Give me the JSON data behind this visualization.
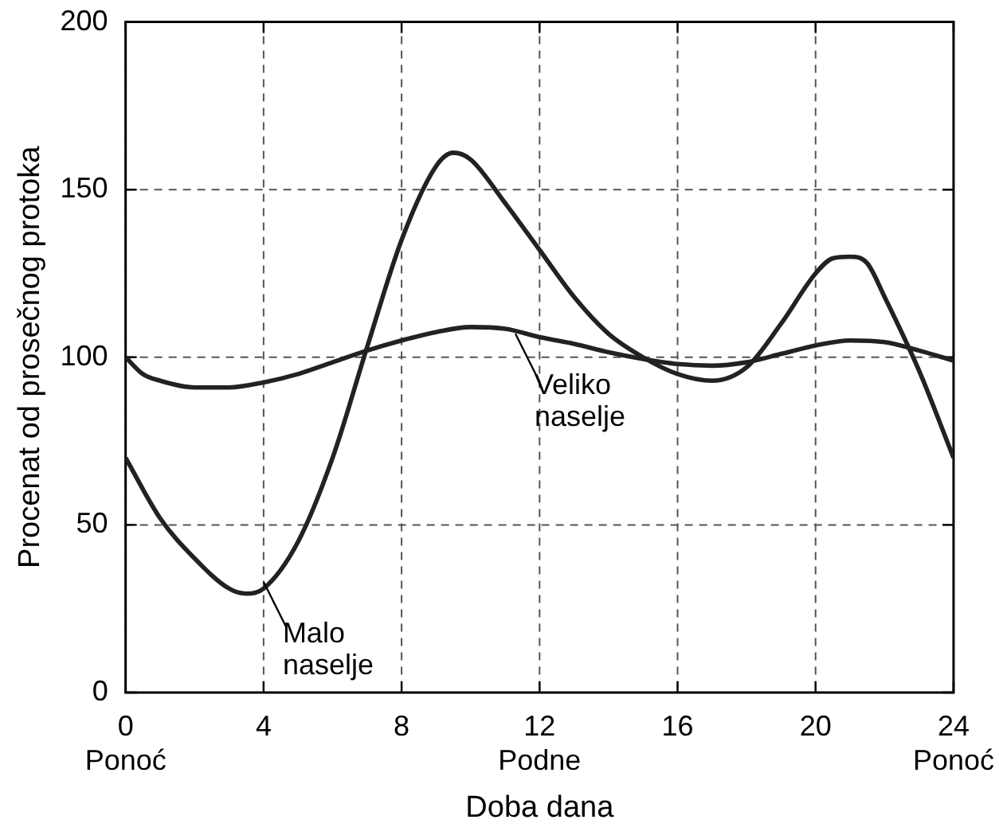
{
  "chart_data": {
    "type": "line",
    "xlabel": "Doba dana",
    "ylabel": "Procenat od prosečnog protoka",
    "xlim": [
      0,
      24
    ],
    "xticks": [
      {
        "value": 0,
        "label": "0\nPonoć"
      },
      4,
      8,
      {
        "value": 12,
        "label": "12\nPodne"
      },
      16,
      20,
      {
        "value": 24,
        "label": "24\nPonoć"
      }
    ],
    "ylim": [
      0,
      200
    ],
    "yticks": [
      0,
      50,
      100,
      150,
      200
    ],
    "grid": true,
    "legend": false,
    "marker": "none",
    "line_style": "solid",
    "series": [
      {
        "color": "#222222",
        "x": [
          0,
          0.5,
          1,
          2,
          3,
          4,
          5,
          6,
          7,
          8,
          9,
          10,
          11,
          12,
          13,
          14,
          15,
          16,
          17,
          18,
          19,
          20,
          21,
          22,
          23,
          24
        ],
        "values": [
          100,
          95,
          93,
          91,
          91,
          92.5,
          95,
          98.5,
          102,
          105,
          107.5,
          109,
          108.5,
          106,
          104,
          101.5,
          99.5,
          98,
          97.5,
          98.5,
          101,
          103.5,
          105,
          104.5,
          102,
          99
        ]
      },
      {
        "color": "#222222",
        "x": [
          0,
          1,
          2,
          3,
          3.5,
          4,
          5,
          6,
          7,
          8,
          9,
          9.5,
          10,
          11,
          12,
          13,
          14,
          15,
          16,
          17,
          18,
          19,
          20,
          20.5,
          21,
          21.5,
          22,
          23,
          24
        ],
        "values": [
          70,
          52,
          40,
          31,
          29.5,
          31,
          45,
          70,
          103,
          135,
          157,
          161,
          159,
          146,
          132,
          118,
          107,
          100,
          95,
          93,
          97,
          110,
          125,
          129.5,
          130,
          128,
          118,
          96,
          70
        ]
      }
    ],
    "annotations": [
      {
        "text": "Veliko naselje",
        "x": 11.3,
        "y": 107
      },
      {
        "text": "Malo naselje",
        "x": 4,
        "y": 33
      }
    ]
  }
}
